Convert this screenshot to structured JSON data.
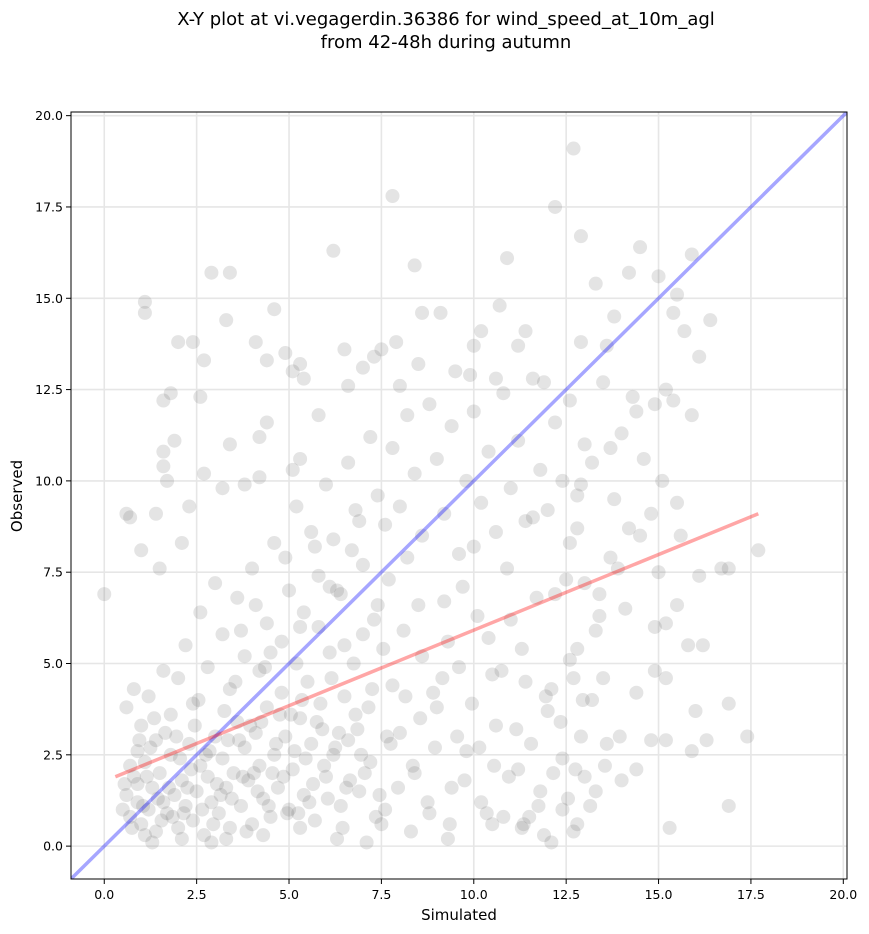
{
  "chart_data": {
    "type": "scatter",
    "title_lines": [
      "X-Y plot at vi.vegagerdin.36386 for wind_speed_at_10m_agl",
      "from 42-48h during autumn"
    ],
    "xlabel": "Simulated",
    "ylabel": "Observed",
    "xlim": [
      -0.9,
      20.1
    ],
    "ylim": [
      -0.9,
      20.1
    ],
    "xticks": [
      "0.0",
      "2.5",
      "5.0",
      "7.5",
      "10.0",
      "12.5",
      "15.0",
      "17.5",
      "20.0"
    ],
    "yticks": [
      "0.0",
      "2.5",
      "5.0",
      "7.5",
      "10.0",
      "12.5",
      "15.0",
      "17.5",
      "20.0"
    ],
    "grid": true,
    "identity_line": {
      "color": "#0000ff",
      "from": [
        -1,
        -1
      ],
      "to": [
        20.1,
        20.1
      ]
    },
    "regression_line": {
      "color": "#ff0000",
      "from": [
        0.3,
        1.9
      ],
      "to": [
        17.7,
        9.1
      ]
    },
    "marker_color": "#555555",
    "points_sparse": [
      [
        0.0,
        6.9
      ],
      [
        0.6,
        9.1
      ],
      [
        0.7,
        9.0
      ],
      [
        1.0,
        8.1
      ],
      [
        1.4,
        9.1
      ],
      [
        1.5,
        7.6
      ],
      [
        1.6,
        10.4
      ],
      [
        1.6,
        10.8
      ],
      [
        1.7,
        10.0
      ],
      [
        1.8,
        12.4
      ],
      [
        1.6,
        12.2
      ],
      [
        1.9,
        11.1
      ],
      [
        2.0,
        13.8
      ],
      [
        2.4,
        13.8
      ],
      [
        2.7,
        13.3
      ],
      [
        2.6,
        12.3
      ],
      [
        3.3,
        14.4
      ],
      [
        2.9,
        15.7
      ],
      [
        3.4,
        15.7
      ],
      [
        1.1,
        14.9
      ],
      [
        1.1,
        14.6
      ],
      [
        3.4,
        11.0
      ],
      [
        2.7,
        10.2
      ],
      [
        2.3,
        9.3
      ],
      [
        2.1,
        8.3
      ],
      [
        3.2,
        9.8
      ],
      [
        3.8,
        9.9
      ],
      [
        4.2,
        10.1
      ],
      [
        4.2,
        11.2
      ],
      [
        4.4,
        11.6
      ],
      [
        4.1,
        13.8
      ],
      [
        4.4,
        13.3
      ],
      [
        4.6,
        14.7
      ],
      [
        4.9,
        13.5
      ],
      [
        5.1,
        13.0
      ],
      [
        5.3,
        13.2
      ],
      [
        5.4,
        12.8
      ],
      [
        5.1,
        10.3
      ],
      [
        5.3,
        10.6
      ],
      [
        5.8,
        11.8
      ],
      [
        6.2,
        16.3
      ],
      [
        6.5,
        13.6
      ],
      [
        6.6,
        12.6
      ],
      [
        7.0,
        13.1
      ],
      [
        7.3,
        13.4
      ],
      [
        7.5,
        13.6
      ],
      [
        7.8,
        17.8
      ],
      [
        7.9,
        13.8
      ],
      [
        8.0,
        12.6
      ],
      [
        8.4,
        15.9
      ],
      [
        8.5,
        13.2
      ],
      [
        8.6,
        14.6
      ],
      [
        9.1,
        14.6
      ],
      [
        9.5,
        13.0
      ],
      [
        9.9,
        12.9
      ],
      [
        10.2,
        14.1
      ],
      [
        10.0,
        13.7
      ],
      [
        10.7,
        14.8
      ],
      [
        10.9,
        16.1
      ],
      [
        10.6,
        12.8
      ],
      [
        11.2,
        13.7
      ],
      [
        11.4,
        14.1
      ],
      [
        11.9,
        12.7
      ],
      [
        12.2,
        17.5
      ],
      [
        12.7,
        19.1
      ],
      [
        12.9,
        16.7
      ],
      [
        13.3,
        15.4
      ],
      [
        12.9,
        13.8
      ],
      [
        13.6,
        13.7
      ],
      [
        13.8,
        14.5
      ],
      [
        14.2,
        15.7
      ],
      [
        14.5,
        16.4
      ],
      [
        15.0,
        15.6
      ],
      [
        15.4,
        14.6
      ],
      [
        15.7,
        14.1
      ],
      [
        15.5,
        15.1
      ],
      [
        15.9,
        16.2
      ],
      [
        16.4,
        14.4
      ],
      [
        16.1,
        13.4
      ],
      [
        15.9,
        11.8
      ],
      [
        15.2,
        12.5
      ],
      [
        15.4,
        12.2
      ],
      [
        14.9,
        12.1
      ],
      [
        14.4,
        11.9
      ],
      [
        14.6,
        10.6
      ],
      [
        15.1,
        10.0
      ],
      [
        15.5,
        9.4
      ],
      [
        14.8,
        9.1
      ],
      [
        15.6,
        8.5
      ],
      [
        16.1,
        7.4
      ],
      [
        16.7,
        7.6
      ],
      [
        16.9,
        7.6
      ],
      [
        17.7,
        8.1
      ],
      [
        15.0,
        7.5
      ],
      [
        15.5,
        6.6
      ],
      [
        15.2,
        6.1
      ],
      [
        15.8,
        5.5
      ],
      [
        16.2,
        5.5
      ],
      [
        16.0,
        3.7
      ],
      [
        15.9,
        2.6
      ],
      [
        16.3,
        2.9
      ],
      [
        16.9,
        3.9
      ],
      [
        17.4,
        3.0
      ],
      [
        16.9,
        1.1
      ],
      [
        15.3,
        0.5
      ],
      [
        14.8,
        2.9
      ],
      [
        15.2,
        2.9
      ],
      [
        14.4,
        2.1
      ],
      [
        14.0,
        1.8
      ],
      [
        13.3,
        1.5
      ],
      [
        12.8,
        0.6
      ],
      [
        12.7,
        0.4
      ],
      [
        12.4,
        1.0
      ],
      [
        12.1,
        0.1
      ],
      [
        11.9,
        0.3
      ],
      [
        11.3,
        0.5
      ],
      [
        14.9,
        4.8
      ],
      [
        15.2,
        4.6
      ],
      [
        14.4,
        4.2
      ],
      [
        13.5,
        4.6
      ],
      [
        12.7,
        4.6
      ],
      [
        12.8,
        5.4
      ],
      [
        13.4,
        6.9
      ],
      [
        13.9,
        7.6
      ],
      [
        14.2,
        8.7
      ],
      [
        13.0,
        7.2
      ],
      [
        12.6,
        8.3
      ],
      [
        12.9,
        9.9
      ],
      [
        13.2,
        10.5
      ],
      [
        13.7,
        10.9
      ],
      [
        14.0,
        11.3
      ],
      [
        14.3,
        12.3
      ],
      [
        13.5,
        12.7
      ]
    ],
    "points_dense": [
      [
        0.5,
        1.0
      ],
      [
        0.6,
        1.4
      ],
      [
        0.7,
        0.8
      ],
      [
        0.8,
        1.9
      ],
      [
        0.9,
        1.2
      ],
      [
        1.0,
        0.6
      ],
      [
        1.1,
        2.3
      ],
      [
        1.2,
        1.0
      ],
      [
        1.3,
        1.6
      ],
      [
        1.4,
        0.4
      ],
      [
        1.5,
        2.0
      ],
      [
        1.6,
        1.2
      ],
      [
        1.7,
        0.9
      ],
      [
        1.8,
        2.5
      ],
      [
        1.9,
        1.4
      ],
      [
        2.0,
        0.5
      ],
      [
        2.1,
        1.8
      ],
      [
        2.2,
        1.1
      ],
      [
        2.3,
        2.8
      ],
      [
        2.4,
        0.7
      ],
      [
        2.5,
        1.5
      ],
      [
        2.6,
        2.2
      ],
      [
        2.7,
        0.3
      ],
      [
        2.8,
        1.9
      ],
      [
        2.9,
        1.2
      ],
      [
        3.0,
        3.0
      ],
      [
        3.1,
        0.9
      ],
      [
        3.2,
        2.4
      ],
      [
        3.3,
        1.6
      ],
      [
        3.4,
        0.5
      ],
      [
        3.5,
        2.0
      ],
      [
        3.6,
        3.4
      ],
      [
        3.7,
        1.1
      ],
      [
        3.8,
        2.7
      ],
      [
        3.9,
        1.8
      ],
      [
        4.0,
        0.6
      ],
      [
        4.1,
        3.1
      ],
      [
        4.2,
        2.2
      ],
      [
        4.3,
        1.3
      ],
      [
        4.4,
        3.8
      ],
      [
        4.5,
        0.8
      ],
      [
        4.6,
        2.5
      ],
      [
        4.7,
        1.6
      ],
      [
        4.8,
        4.2
      ],
      [
        4.9,
        3.0
      ],
      [
        5.0,
        1.0
      ],
      [
        5.1,
        2.1
      ],
      [
        5.2,
        5.0
      ],
      [
        5.3,
        3.5
      ],
      [
        5.4,
        1.4
      ],
      [
        5.5,
        4.5
      ],
      [
        5.6,
        2.8
      ],
      [
        5.7,
        0.7
      ],
      [
        5.8,
        6.0
      ],
      [
        5.9,
        3.2
      ],
      [
        6.0,
        1.9
      ],
      [
        6.1,
        5.3
      ],
      [
        6.2,
        2.5
      ],
      [
        6.3,
        7.0
      ],
      [
        6.4,
        1.1
      ],
      [
        6.5,
        4.1
      ],
      [
        6.6,
        2.9
      ],
      [
        6.7,
        8.1
      ],
      [
        6.8,
        3.6
      ],
      [
        6.9,
        1.5
      ],
      [
        7.0,
        5.8
      ],
      [
        7.2,
        2.3
      ],
      [
        7.4,
        6.6
      ],
      [
        7.6,
        1.0
      ],
      [
        7.8,
        4.4
      ],
      [
        8.0,
        3.1
      ],
      [
        8.2,
        7.9
      ],
      [
        8.4,
        2.0
      ],
      [
        8.6,
        5.2
      ],
      [
        8.8,
        0.9
      ],
      [
        9.0,
        3.8
      ],
      [
        9.2,
        6.7
      ],
      [
        9.4,
        1.6
      ],
      [
        9.6,
        4.9
      ],
      [
        9.8,
        2.6
      ],
      [
        10.0,
        8.2
      ],
      [
        10.2,
        1.2
      ],
      [
        10.4,
        5.7
      ],
      [
        10.6,
        3.3
      ],
      [
        10.8,
        0.8
      ],
      [
        11.0,
        6.2
      ],
      [
        11.2,
        2.1
      ],
      [
        11.4,
        4.5
      ],
      [
        11.6,
        9.0
      ],
      [
        11.8,
        1.5
      ],
      [
        12.0,
        3.7
      ],
      [
        12.2,
        6.9
      ],
      [
        12.4,
        2.4
      ],
      [
        12.6,
        5.1
      ],
      [
        12.8,
        8.7
      ],
      [
        13.0,
        1.9
      ],
      [
        13.2,
        4.0
      ],
      [
        13.4,
        6.3
      ],
      [
        13.6,
        2.8
      ],
      [
        13.8,
        9.5
      ],
      [
        2.0,
        4.6
      ],
      [
        2.2,
        5.5
      ],
      [
        2.4,
        3.9
      ],
      [
        2.6,
        6.4
      ],
      [
        2.8,
        4.9
      ],
      [
        3.0,
        7.2
      ],
      [
        3.2,
        5.8
      ],
      [
        3.4,
        4.3
      ],
      [
        3.6,
        6.8
      ],
      [
        3.8,
        5.2
      ],
      [
        4.0,
        7.6
      ],
      [
        4.2,
        4.8
      ],
      [
        4.4,
        6.1
      ],
      [
        4.6,
        8.3
      ],
      [
        4.8,
        5.6
      ],
      [
        5.0,
        7.0
      ],
      [
        5.2,
        9.3
      ],
      [
        5.4,
        6.4
      ],
      [
        5.6,
        8.6
      ],
      [
        5.8,
        7.4
      ],
      [
        6.0,
        9.9
      ],
      [
        6.2,
        8.4
      ],
      [
        6.4,
        6.9
      ],
      [
        6.6,
        10.5
      ],
      [
        6.8,
        9.2
      ],
      [
        7.0,
        7.7
      ],
      [
        7.2,
        11.2
      ],
      [
        7.4,
        9.6
      ],
      [
        7.6,
        8.8
      ],
      [
        7.8,
        10.9
      ],
      [
        8.0,
        9.3
      ],
      [
        8.2,
        11.8
      ],
      [
        8.4,
        10.2
      ],
      [
        8.6,
        8.5
      ],
      [
        8.8,
        12.1
      ],
      [
        9.0,
        10.6
      ],
      [
        9.2,
        9.1
      ],
      [
        9.4,
        11.5
      ],
      [
        9.6,
        8.0
      ],
      [
        9.8,
        10.0
      ],
      [
        10.0,
        11.9
      ],
      [
        10.2,
        9.4
      ],
      [
        10.4,
        10.8
      ],
      [
        10.6,
        8.6
      ],
      [
        10.8,
        12.4
      ],
      [
        11.0,
        9.8
      ],
      [
        11.2,
        11.1
      ],
      [
        11.4,
        8.9
      ],
      [
        11.6,
        12.8
      ],
      [
        11.8,
        10.3
      ],
      [
        12.0,
        9.2
      ],
      [
        12.2,
        11.6
      ],
      [
        12.4,
        10.0
      ],
      [
        12.6,
        12.2
      ],
      [
        12.8,
        9.6
      ],
      [
        13.0,
        11.0
      ],
      [
        1.0,
        3.3
      ],
      [
        1.2,
        4.1
      ],
      [
        1.4,
        2.9
      ],
      [
        1.6,
        4.8
      ],
      [
        1.8,
        3.6
      ],
      [
        0.8,
        4.3
      ],
      [
        0.6,
        3.8
      ],
      [
        0.9,
        2.6
      ],
      [
        1.1,
        0.3
      ],
      [
        1.3,
        0.1
      ],
      [
        2.1,
        0.2
      ],
      [
        2.9,
        0.1
      ],
      [
        3.3,
        0.2
      ],
      [
        4.3,
        0.3
      ],
      [
        5.3,
        0.5
      ],
      [
        6.3,
        0.2
      ],
      [
        7.1,
        0.1
      ],
      [
        7.5,
        0.6
      ],
      [
        8.3,
        0.4
      ],
      [
        9.3,
        0.2
      ],
      [
        10.5,
        0.6
      ],
      [
        11.5,
        0.8
      ],
      [
        3.7,
        5.9
      ],
      [
        4.1,
        6.6
      ],
      [
        4.5,
        5.3
      ],
      [
        4.9,
        7.9
      ],
      [
        5.3,
        6.0
      ],
      [
        5.7,
        8.2
      ],
      [
        6.1,
        7.1
      ],
      [
        6.5,
        5.5
      ],
      [
        6.9,
        8.9
      ],
      [
        7.3,
        6.2
      ],
      [
        7.7,
        7.3
      ],
      [
        8.1,
        5.9
      ],
      [
        8.5,
        6.6
      ],
      [
        8.9,
        4.2
      ],
      [
        9.3,
        5.6
      ],
      [
        9.7,
        7.1
      ],
      [
        10.1,
        6.3
      ],
      [
        10.5,
        4.7
      ],
      [
        10.9,
        7.6
      ],
      [
        11.3,
        5.4
      ],
      [
        11.7,
        6.8
      ],
      [
        12.1,
        4.3
      ],
      [
        12.5,
        7.3
      ],
      [
        12.9,
        3.0
      ],
      [
        13.3,
        5.9
      ],
      [
        13.7,
        7.9
      ],
      [
        14.1,
        6.5
      ],
      [
        14.5,
        8.5
      ],
      [
        14.9,
        6.0
      ],
      [
        0.7,
        2.2
      ],
      [
        0.9,
        1.7
      ],
      [
        1.05,
        1.1
      ],
      [
        1.25,
        2.7
      ],
      [
        1.45,
        1.3
      ],
      [
        1.65,
        3.1
      ],
      [
        1.85,
        0.8
      ],
      [
        2.05,
        2.4
      ],
      [
        2.25,
        1.6
      ],
      [
        2.45,
        3.3
      ],
      [
        2.65,
        1.0
      ],
      [
        2.85,
        2.6
      ],
      [
        3.05,
        1.7
      ],
      [
        3.25,
        3.7
      ],
      [
        3.45,
        1.3
      ],
      [
        3.65,
        2.9
      ],
      [
        3.85,
        0.4
      ],
      [
        4.05,
        2.0
      ],
      [
        4.25,
        3.4
      ],
      [
        4.45,
        1.1
      ],
      [
        4.65,
        2.8
      ],
      [
        4.85,
        1.9
      ],
      [
        5.05,
        3.6
      ],
      [
        5.25,
        0.9
      ],
      [
        5.45,
        2.4
      ],
      [
        5.65,
        1.7
      ],
      [
        5.85,
        3.9
      ],
      [
        6.05,
        1.3
      ],
      [
        6.25,
        2.7
      ],
      [
        6.45,
        0.5
      ],
      [
        6.65,
        1.8
      ],
      [
        6.85,
        3.2
      ],
      [
        7.05,
        2.0
      ],
      [
        7.25,
        4.3
      ],
      [
        7.45,
        1.4
      ],
      [
        7.65,
        3.0
      ],
      [
        0.55,
        1.7
      ],
      [
        0.75,
        0.5
      ],
      [
        0.95,
        2.9
      ],
      [
        1.15,
        1.9
      ],
      [
        1.35,
        3.5
      ],
      [
        1.55,
        0.7
      ],
      [
        1.75,
        1.6
      ],
      [
        1.95,
        3.0
      ],
      [
        2.15,
        0.9
      ],
      [
        2.35,
        2.1
      ],
      [
        2.55,
        4.0
      ],
      [
        2.75,
        2.5
      ],
      [
        2.95,
        0.6
      ],
      [
        3.15,
        1.4
      ],
      [
        3.35,
        2.9
      ],
      [
        3.55,
        4.5
      ],
      [
        3.75,
        1.9
      ],
      [
        3.95,
        3.3
      ],
      [
        4.15,
        1.5
      ],
      [
        4.35,
        4.9
      ],
      [
        4.55,
        2.0
      ],
      [
        4.75,
        3.6
      ],
      [
        4.95,
        0.9
      ],
      [
        5.15,
        2.6
      ],
      [
        5.35,
        4.0
      ],
      [
        5.55,
        1.2
      ],
      [
        5.75,
        3.4
      ],
      [
        5.95,
        2.2
      ],
      [
        6.15,
        4.6
      ],
      [
        6.35,
        3.1
      ],
      [
        6.55,
        1.6
      ],
      [
        6.75,
        5.0
      ],
      [
        6.95,
        2.5
      ],
      [
        7.15,
        3.8
      ],
      [
        7.35,
        0.8
      ],
      [
        7.55,
        5.4
      ],
      [
        7.75,
        2.8
      ],
      [
        7.95,
        1.6
      ],
      [
        8.15,
        4.1
      ],
      [
        8.35,
        2.2
      ],
      [
        8.55,
        3.5
      ],
      [
        8.75,
        1.2
      ],
      [
        8.95,
        2.7
      ],
      [
        9.15,
        4.6
      ],
      [
        9.35,
        0.6
      ],
      [
        9.55,
        3.0
      ],
      [
        9.75,
        1.8
      ],
      [
        9.95,
        3.9
      ],
      [
        10.15,
        2.7
      ],
      [
        10.35,
        0.9
      ],
      [
        10.55,
        2.2
      ],
      [
        10.75,
        4.8
      ],
      [
        10.95,
        1.9
      ],
      [
        11.15,
        3.2
      ],
      [
        11.35,
        0.6
      ],
      [
        11.55,
        2.8
      ],
      [
        11.75,
        1.1
      ],
      [
        11.95,
        4.1
      ],
      [
        12.15,
        2.0
      ],
      [
        12.35,
        3.4
      ],
      [
        12.55,
        1.3
      ],
      [
        12.75,
        2.1
      ],
      [
        12.95,
        4.0
      ],
      [
        13.15,
        1.1
      ],
      [
        13.55,
        2.2
      ],
      [
        13.95,
        3.0
      ]
    ]
  }
}
